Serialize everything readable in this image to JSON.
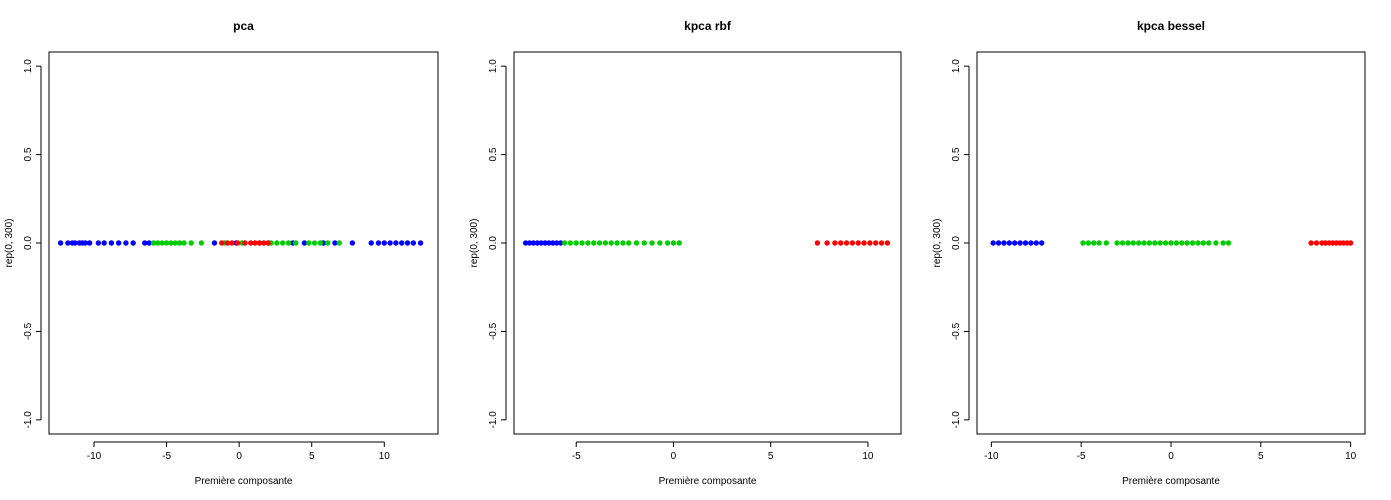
{
  "chart_data": [
    {
      "type": "scatter",
      "title": "pca",
      "xlabel": "Première composante",
      "ylabel": "rep(0, 300)",
      "xlim": [
        -13.1,
        13.7
      ],
      "ylim": [
        -1.08,
        1.08
      ],
      "xticks": [
        -10,
        -5,
        0,
        5,
        10
      ],
      "xtick_labels": [
        "-10",
        "-5",
        "0",
        "5",
        "10"
      ],
      "yticks": [
        -1.0,
        -0.5,
        0.0,
        0.5,
        1.0
      ],
      "ytick_labels": [
        "-1.0",
        "-0.5",
        "0.0",
        "0.5",
        "1.0"
      ],
      "grid": false,
      "series": [
        {
          "color": "#0000ff",
          "y": 0,
          "x": [
            -12.3,
            -11.8,
            -11.5,
            -11.3,
            -11.0,
            -10.8,
            -10.6,
            -10.3,
            -9.7,
            -9.3,
            -8.8,
            -8.3,
            -7.8,
            -7.3,
            -6.5,
            -6.2,
            -1.7,
            -0.2,
            2.0,
            3.7,
            4.5,
            5.8,
            6.6,
            7.8,
            9.1,
            9.6,
            10.0,
            10.4,
            10.8,
            11.2,
            11.6,
            12.0,
            12.5
          ]
        },
        {
          "color": "#00cd00",
          "y": 0,
          "x": [
            -5.9,
            -5.6,
            -5.3,
            -5.0,
            -4.7,
            -4.4,
            -4.1,
            -3.8,
            -3.3,
            -2.6,
            -1.0,
            0.2,
            1.4,
            2.2,
            2.6,
            3.0,
            3.4,
            3.9,
            4.8,
            5.2,
            5.6,
            6.1,
            6.9
          ]
        },
        {
          "color": "#ff0000",
          "y": 0,
          "x": [
            -1.2,
            -0.8,
            -0.5,
            -0.1,
            0.4,
            0.8,
            1.1,
            1.4,
            1.7,
            2.0
          ]
        }
      ]
    },
    {
      "type": "scatter",
      "title": "kpca rbf",
      "xlabel": "Première composante",
      "ylabel": "rep(0, 300)",
      "xlim": [
        -8.2,
        11.7
      ],
      "ylim": [
        -1.08,
        1.08
      ],
      "xticks": [
        -5,
        0,
        5,
        10
      ],
      "xtick_labels": [
        "-5",
        "0",
        "5",
        "10"
      ],
      "yticks": [
        -1.0,
        -0.5,
        0.0,
        0.5,
        1.0
      ],
      "ytick_labels": [
        "-1.0",
        "-0.5",
        "0.0",
        "0.5",
        "1.0"
      ],
      "grid": false,
      "series": [
        {
          "color": "#0000ff",
          "y": 0,
          "x": [
            -7.6,
            -7.4,
            -7.2,
            -7.0,
            -6.8,
            -6.6,
            -6.4,
            -6.2,
            -6.0,
            -5.8
          ]
        },
        {
          "color": "#00cd00",
          "y": 0,
          "x": [
            -5.6,
            -5.3,
            -5.0,
            -4.7,
            -4.4,
            -4.1,
            -3.8,
            -3.5,
            -3.2,
            -2.9,
            -2.6,
            -2.3,
            -1.9,
            -1.5,
            -1.1,
            -0.7,
            -0.3,
            0.0,
            0.3
          ]
        },
        {
          "color": "#ff0000",
          "y": 0,
          "x": [
            7.4,
            7.9,
            8.3,
            8.6,
            8.9,
            9.2,
            9.5,
            9.8,
            10.1,
            10.4,
            10.7,
            11.0
          ]
        }
      ]
    },
    {
      "type": "scatter",
      "title": "kpca bessel",
      "xlabel": "Première composante",
      "ylabel": "rep(0, 300)",
      "xlim": [
        -10.8,
        10.8
      ],
      "ylim": [
        -1.08,
        1.08
      ],
      "xticks": [
        -10,
        -5,
        0,
        5,
        10
      ],
      "xtick_labels": [
        "-10",
        "-5",
        "0",
        "5",
        "10"
      ],
      "yticks": [
        -1.0,
        -0.5,
        0.0,
        0.5,
        1.0
      ],
      "ytick_labels": [
        "-1.0",
        "-0.5",
        "0.0",
        "0.5",
        "1.0"
      ],
      "grid": false,
      "series": [
        {
          "color": "#0000ff",
          "y": 0,
          "x": [
            -9.9,
            -9.6,
            -9.3,
            -9.0,
            -8.7,
            -8.4,
            -8.1,
            -7.8,
            -7.5,
            -7.2
          ]
        },
        {
          "color": "#00cd00",
          "y": 0,
          "x": [
            -4.9,
            -4.6,
            -4.3,
            -4.0,
            -3.6,
            -3.0,
            -2.7,
            -2.4,
            -2.1,
            -1.8,
            -1.5,
            -1.2,
            -0.9,
            -0.6,
            -0.3,
            0.0,
            0.3,
            0.6,
            0.9,
            1.2,
            1.5,
            1.8,
            2.1,
            2.5,
            2.9,
            3.2
          ]
        },
        {
          "color": "#ff0000",
          "y": 0,
          "x": [
            7.8,
            8.1,
            8.4,
            8.6,
            8.8,
            9.0,
            9.2,
            9.4,
            9.6,
            9.8,
            10.0
          ]
        }
      ]
    }
  ]
}
